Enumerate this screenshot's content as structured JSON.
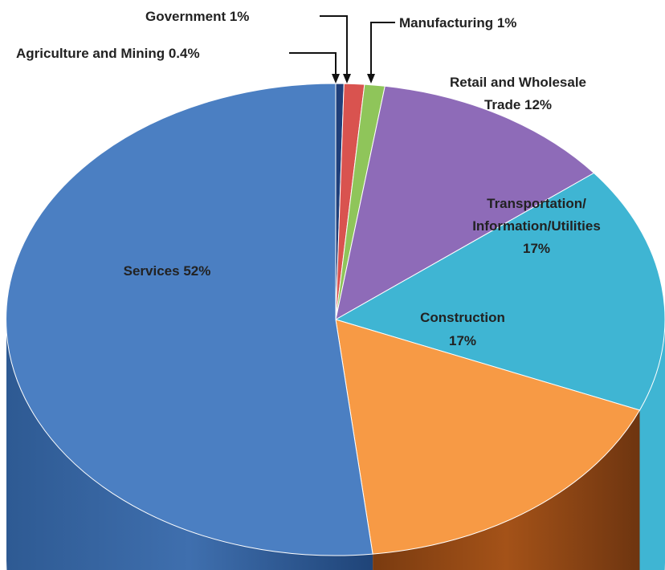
{
  "chart_data": {
    "type": "pie",
    "title": "",
    "slices": [
      {
        "label": "Agriculture and Mining 0.4%",
        "value": 0.4,
        "color": "#1f3f7a"
      },
      {
        "label": "Government 1%",
        "value": 1,
        "color": "#d9534f"
      },
      {
        "label": "Manufacturing 1%",
        "value": 1,
        "color": "#8fc55a"
      },
      {
        "label": "Retail and Wholesale Trade 12%",
        "value": 12,
        "color": "#8e6bb8"
      },
      {
        "label": "Transportation/ Information/Utilities 17%",
        "value": 17,
        "color": "#3fb5d3"
      },
      {
        "label": "Construction 17%",
        "value": 17,
        "color": "#f79a45"
      },
      {
        "label": "Services 52%",
        "value": 52,
        "color": "#4b7fc2"
      }
    ],
    "labels": {
      "agriculture": "Agriculture and Mining 0.4%",
      "government": "Government 1%",
      "manufacturing": "Manufacturing 1%",
      "retail_line1": "Retail and Wholesale",
      "retail_line2": "Trade 12%",
      "transport_line1": "Transportation/",
      "transport_line2": "Information/Utilities",
      "transport_line3": "17%",
      "construction_line1": "Construction",
      "construction_line2": "17%",
      "services": "Services 52%"
    }
  }
}
